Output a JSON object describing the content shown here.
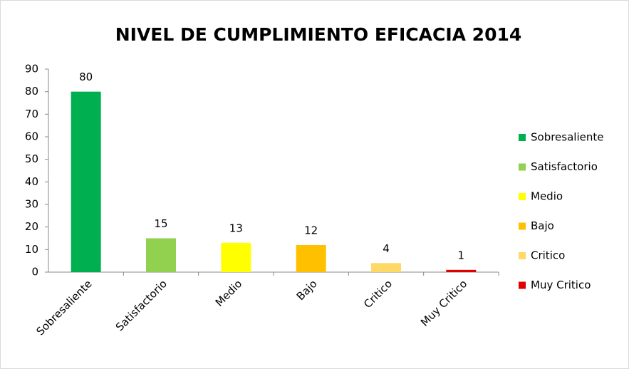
{
  "chart_data": {
    "type": "bar",
    "title": "NIVEL DE CUMPLIMIENTO  EFICACIA 2014",
    "categories": [
      "Sobresaliente",
      "Satisfactorio",
      "Medio",
      "Bajo",
      "Critico",
      "Muy Critico"
    ],
    "values": [
      80,
      15,
      13,
      12,
      4,
      1
    ],
    "colors": [
      "#00b050",
      "#92d050",
      "#ffff00",
      "#ffc000",
      "#ffd966",
      "#e00000"
    ],
    "ylim": [
      0,
      90
    ],
    "yticks": [
      0,
      10,
      20,
      30,
      40,
      50,
      60,
      70,
      80,
      90
    ],
    "legend": "right"
  }
}
